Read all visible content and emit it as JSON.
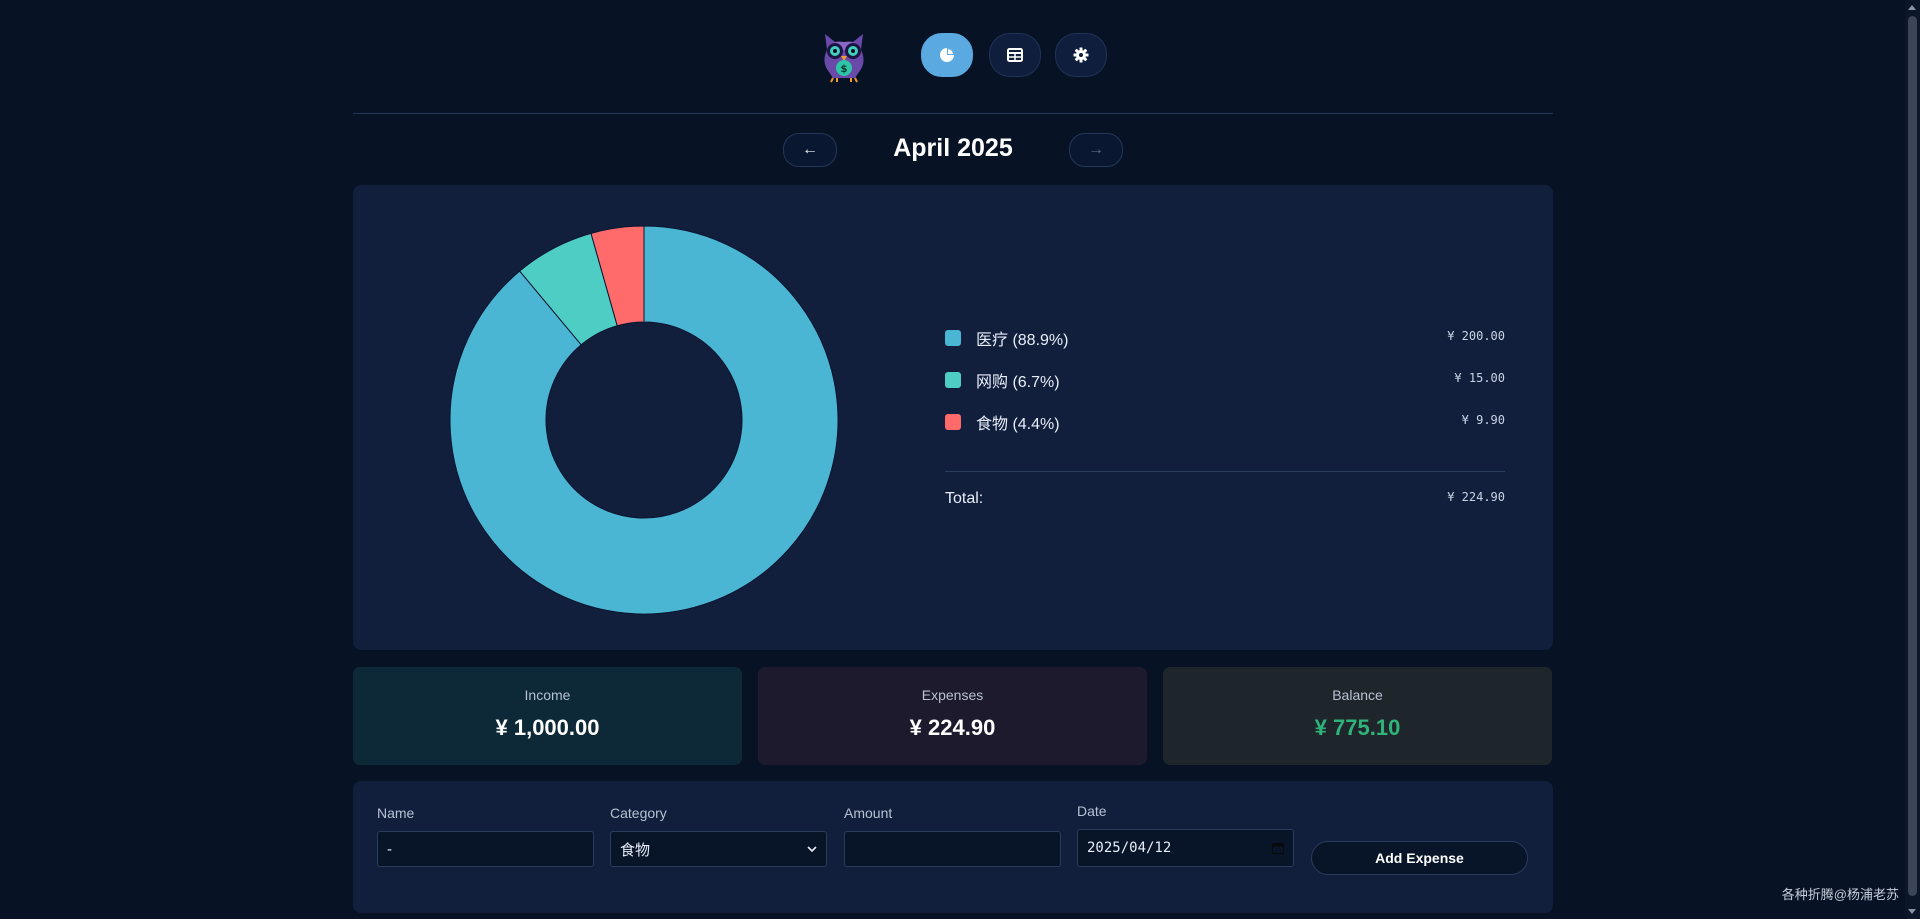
{
  "header": {
    "nav": [
      {
        "icon": "pie-chart-icon",
        "active": true
      },
      {
        "icon": "table-icon",
        "active": false
      },
      {
        "icon": "gear-icon",
        "active": false
      }
    ]
  },
  "month": {
    "title": "April 2025",
    "prev_arrow": "←",
    "next_arrow": "→"
  },
  "chart_data": {
    "type": "pie",
    "categories": [
      "医疗",
      "网购",
      "食物"
    ],
    "values": [
      200.0,
      15.0,
      9.9
    ],
    "colors": [
      "#4ab6d3",
      "#4ecdc4",
      "#ff6b6b"
    ]
  },
  "legend": {
    "items": [
      {
        "label": "医疗 (88.9%)",
        "amount": "¥ 200.00",
        "color": "#4ab6d3"
      },
      {
        "label": "网购 (6.7%)",
        "amount": "¥ 15.00",
        "color": "#4ecdc4"
      },
      {
        "label": "食物 (4.4%)",
        "amount": "¥ 9.90",
        "color": "#ff6b6b"
      }
    ],
    "total_label": "Total:",
    "total_amount": "¥ 224.90"
  },
  "stats": {
    "income": {
      "label": "Income",
      "value": "¥ 1,000.00",
      "bg": "#0d2836",
      "color": "#ffffff"
    },
    "expenses": {
      "label": "Expenses",
      "value": "¥ 224.90",
      "bg": "#1c1a2c",
      "color": "#ffffff"
    },
    "balance": {
      "label": "Balance",
      "value": "¥ 775.10",
      "bg": "#1f262b",
      "color": "#2fb37a"
    }
  },
  "form": {
    "name_label": "Name",
    "name_value": "-",
    "category_label": "Category",
    "category_value": "食物",
    "amount_label": "Amount",
    "amount_value": "",
    "date_label": "Date",
    "date_value": "2025/04/12",
    "submit_label": "Add Expense"
  },
  "watermark": "各种折腾@杨浦老苏"
}
